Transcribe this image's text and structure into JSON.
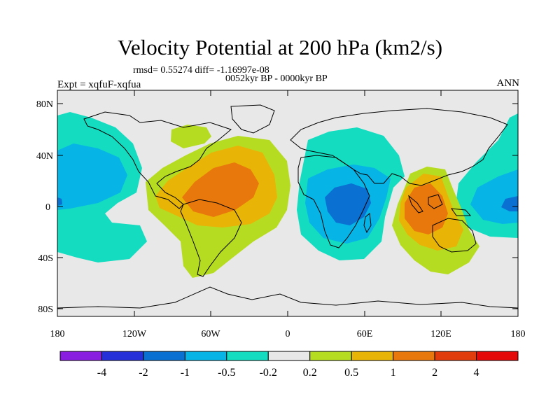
{
  "title": "Velocity Potential at 200 hPa (km2/s)",
  "stats": "rmsd= 0.55274 diff= -1.16997e-08",
  "period": "0052kyr BP - 0000kyr BP",
  "experiment": "Expt = xqfuF-xqfua",
  "season": "ANN",
  "latitude_labels": [
    "80N",
    "40N",
    "0",
    "40S",
    "80S"
  ],
  "longitude_labels": [
    "180",
    "120W",
    "60W",
    "0",
    "60E",
    "120E",
    "180"
  ],
  "colorbar": {
    "labels": [
      "-4",
      "-2",
      "-1",
      "-0.5",
      "-0.2",
      "0.2",
      "0.5",
      "1",
      "2",
      "4"
    ],
    "colors": [
      "#8a1ee0",
      "#2630d8",
      "#0a70d2",
      "#06b4e6",
      "#13dcc0",
      "#e8e8e8",
      "#b6dc22",
      "#e8b406",
      "#e8780c",
      "#e03c0c",
      "#e40808"
    ]
  },
  "colors": {
    "background": "#e8e8e8",
    "coastline": "#000000"
  }
}
